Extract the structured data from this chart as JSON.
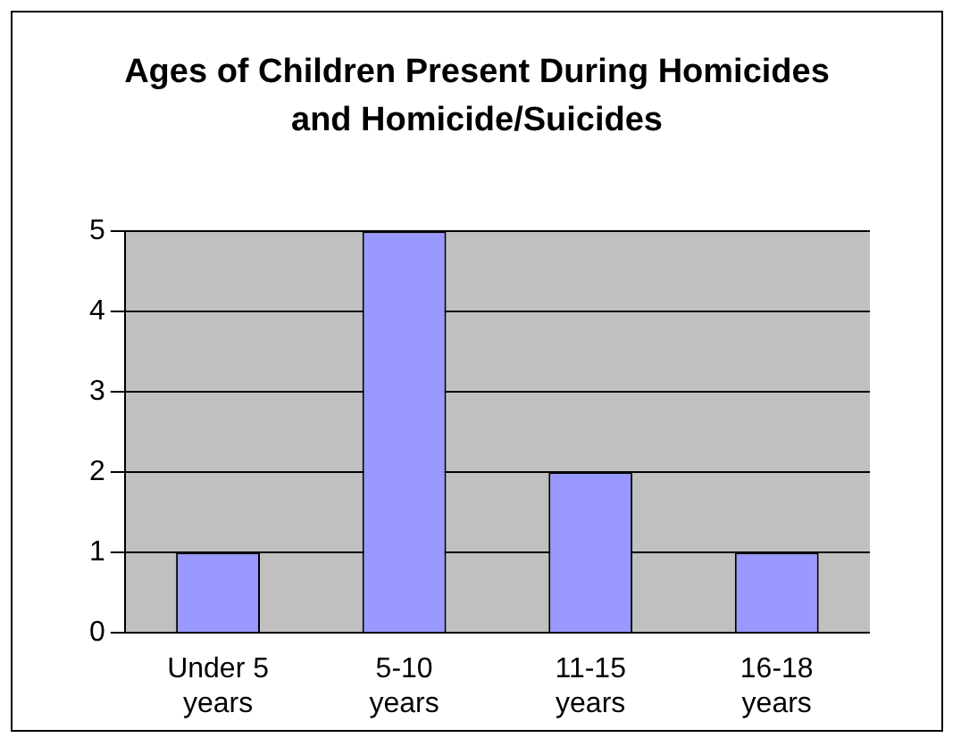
{
  "chart_data": {
    "type": "bar",
    "title": "Ages of Children Present During Homicides and Homicide/Suicides",
    "categories": [
      "Under 5 years",
      "5-10 years",
      "11-15 years",
      "16-18 years"
    ],
    "values": [
      1,
      5,
      2,
      1
    ],
    "color": "#9999ff",
    "ylim": [
      0,
      5
    ],
    "yticks": [
      0,
      1,
      2,
      3,
      4,
      5
    ],
    "grid": "y",
    "legend": false
  }
}
